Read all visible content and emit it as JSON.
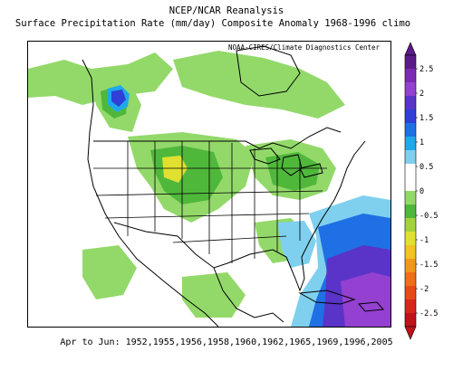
{
  "title_line1": "NCEP/NCAR Reanalysis",
  "title_line2": "Surface Precipitation Rate (mm/day) Composite Anomaly 1968-1996 climo",
  "credit": "NOAA-CIRES/Climate Diagnostics Center",
  "footer": "Apr to Jun: 1952,1955,1956,1958,1960,1962,1965,1969,1996,2005",
  "colorbar": {
    "tick_labels": [
      "2.5",
      "2",
      "1.5",
      "1",
      "0.5",
      "0",
      "-0.5",
      "-1",
      "-1.5",
      "-2",
      "-2.5"
    ],
    "tick_values": [
      2.5,
      2,
      1.5,
      1,
      0.5,
      0,
      -0.5,
      -1,
      -1.5,
      -2,
      -2.5
    ],
    "colors_top_to_bottom": [
      "#5b1a8a",
      "#7c2bb5",
      "#9440d0",
      "#5a34c8",
      "#2f3fd8",
      "#1f70e4",
      "#20a9ea",
      "#7fd0ee",
      "#ffffff",
      "#ffffff",
      "#93d96a",
      "#4fb83b",
      "#a3d23a",
      "#e0e030",
      "#f1c323",
      "#f0981c",
      "#ef6e19",
      "#e84a16",
      "#d9261a",
      "#c0121a"
    ]
  }
}
